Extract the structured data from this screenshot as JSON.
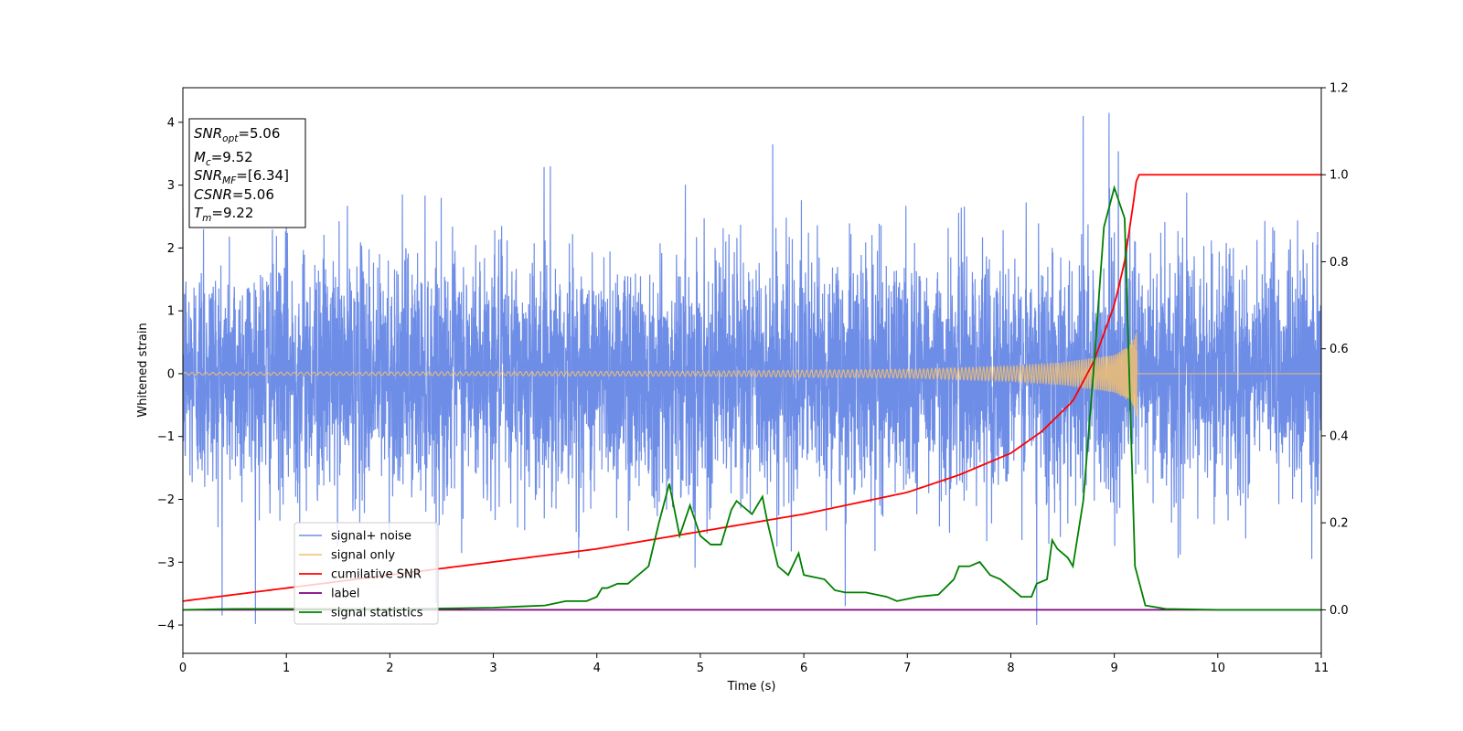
{
  "chart_data": {
    "type": "line",
    "title": "",
    "xlabel": "Time (s)",
    "ylabel": "Whitened strain",
    "y2label": "",
    "xlim": [
      0,
      11
    ],
    "ylim": [
      -4.45,
      4.55
    ],
    "y2lim": [
      -0.1,
      1.2
    ],
    "x_ticks": [
      0,
      1,
      2,
      3,
      4,
      5,
      6,
      7,
      8,
      9,
      10,
      11
    ],
    "y_ticks": [
      -4,
      -3,
      -2,
      -1,
      0,
      1,
      2,
      3,
      4
    ],
    "y2_ticks": [
      0.0,
      0.2,
      0.4,
      0.6,
      0.8,
      1.0,
      1.2
    ],
    "x_tick_labels": [
      "0",
      "1",
      "2",
      "3",
      "4",
      "5",
      "6",
      "7",
      "8",
      "9",
      "10",
      "11"
    ],
    "y_tick_labels": [
      "−4",
      "−3",
      "−2",
      "−1",
      "0",
      "1",
      "2",
      "3",
      "4"
    ],
    "y2_tick_labels": [
      "0.0",
      "0.2",
      "0.4",
      "0.6",
      "0.8",
      "1.0",
      "1.2"
    ],
    "grid": false,
    "legend_position": "lower-left",
    "colors": {
      "noise": "#6e8de6",
      "signal": "#f2c070",
      "cumulative_snr": "#ff0000",
      "label": "#800080",
      "statistics": "#008000"
    },
    "series": [
      {
        "name": "signal+ noise",
        "axis": "left",
        "description_values": {
          "fs": 512,
          "noise_std": 1.0,
          "peaks": [
            [
              0.2,
              2.3
            ],
            [
              1.0,
              2.4
            ],
            [
              3.55,
              3.3
            ],
            [
              5.7,
              3.65
            ],
            [
              6.4,
              -3.7
            ],
            [
              8.25,
              -4.0
            ],
            [
              8.7,
              4.1
            ],
            [
              8.95,
              4.15
            ]
          ]
        }
      },
      {
        "name": "signal only",
        "axis": "left",
        "description_values": {
          "merger_time": 9.22,
          "envelope": [
            [
              0,
              0.02
            ],
            [
              5,
              0.04
            ],
            [
              7,
              0.07
            ],
            [
              8,
              0.12
            ],
            [
              8.5,
              0.18
            ],
            [
              9.0,
              0.3
            ],
            [
              9.15,
              0.45
            ],
            [
              9.22,
              0.7
            ],
            [
              9.23,
              0.0
            ]
          ]
        }
      },
      {
        "name": "cumilative SNR",
        "axis": "right",
        "x": [
          0,
          1,
          2,
          3,
          4,
          5,
          6,
          7,
          7.5,
          8,
          8.3,
          8.6,
          8.8,
          9.0,
          9.1,
          9.15,
          9.2,
          9.22,
          9.23,
          11
        ],
        "values": [
          0.02,
          0.05,
          0.08,
          0.11,
          0.14,
          0.18,
          0.22,
          0.27,
          0.31,
          0.36,
          0.41,
          0.48,
          0.57,
          0.7,
          0.8,
          0.88,
          0.96,
          1.0,
          1.0,
          1.0
        ]
      },
      {
        "name": "label",
        "axis": "right",
        "x": [
          0,
          11
        ],
        "values": [
          0.0,
          0.0
        ]
      },
      {
        "name": "signal statistics",
        "axis": "right",
        "x": [
          0,
          0.5,
          1,
          1.5,
          2,
          2.5,
          3,
          3.3,
          3.5,
          3.7,
          3.8,
          3.9,
          4.0,
          4.05,
          4.1,
          4.2,
          4.3,
          4.4,
          4.5,
          4.6,
          4.7,
          4.8,
          4.9,
          5.0,
          5.1,
          5.2,
          5.3,
          5.35,
          5.5,
          5.6,
          5.65,
          5.75,
          5.85,
          5.95,
          6.0,
          6.1,
          6.2,
          6.3,
          6.4,
          6.6,
          6.8,
          6.9,
          7.1,
          7.3,
          7.45,
          7.5,
          7.6,
          7.7,
          7.8,
          7.9,
          8.0,
          8.1,
          8.2,
          8.25,
          8.35,
          8.4,
          8.45,
          8.55,
          8.6,
          8.7,
          8.8,
          8.9,
          9.0,
          9.1,
          9.2,
          9.3,
          9.5,
          10,
          11
        ],
        "values": [
          0.0,
          0.002,
          0.002,
          0.002,
          0.002,
          0.003,
          0.005,
          0.008,
          0.01,
          0.02,
          0.02,
          0.02,
          0.03,
          0.05,
          0.05,
          0.06,
          0.06,
          0.08,
          0.1,
          0.2,
          0.29,
          0.17,
          0.24,
          0.17,
          0.15,
          0.15,
          0.23,
          0.25,
          0.22,
          0.26,
          0.2,
          0.1,
          0.08,
          0.13,
          0.08,
          0.075,
          0.07,
          0.045,
          0.04,
          0.04,
          0.03,
          0.02,
          0.03,
          0.035,
          0.07,
          0.1,
          0.1,
          0.11,
          0.08,
          0.07,
          0.05,
          0.03,
          0.03,
          0.06,
          0.07,
          0.16,
          0.14,
          0.12,
          0.1,
          0.25,
          0.55,
          0.88,
          0.97,
          0.9,
          0.1,
          0.01,
          0.002,
          0.0,
          0.0
        ]
      }
    ],
    "info_box": [
      {
        "base": "SNR",
        "sub": "opt",
        "rest": "=5.06"
      },
      {
        "base": "M",
        "sub": "c",
        "rest": "=9.52"
      },
      {
        "base": "SNR",
        "sub": "MF",
        "rest": "=[6.34]"
      },
      {
        "base": "CSNR",
        "sub": "",
        "rest": "=5.06"
      },
      {
        "base": "T",
        "sub": "m",
        "rest": "=9.22"
      }
    ]
  }
}
